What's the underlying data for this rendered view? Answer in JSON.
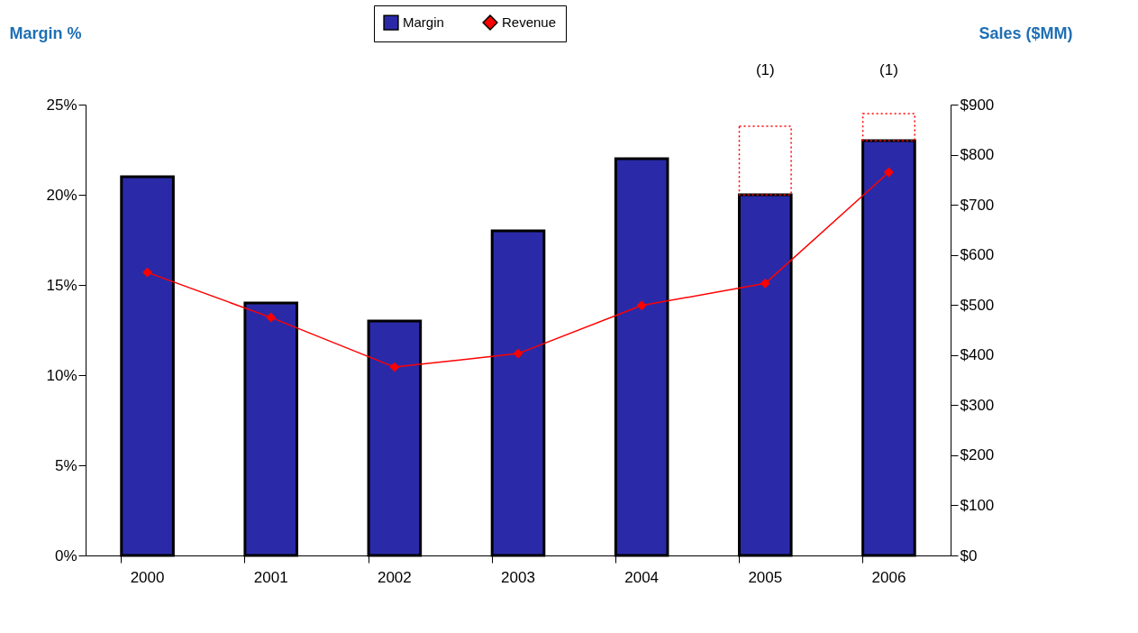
{
  "chart_data": {
    "type": "bar",
    "categories": [
      "2000",
      "2001",
      "2002",
      "2003",
      "2004",
      "2005",
      "2006"
    ],
    "series": [
      {
        "name": "Margin",
        "color": "#2a2aa8",
        "values": [
          21,
          14,
          13,
          18,
          22,
          20,
          23
        ]
      },
      {
        "color": "#ff0000",
        "line_style": "dotted",
        "values": [
          null,
          null,
          null,
          null,
          null,
          3.8,
          1.5
        ]
      },
      {
        "name": "Revenue",
        "type": "line",
        "axis": "y2",
        "color": "#ff0000",
        "marker": "diamond",
        "line_style": "solid",
        "values": [
          565,
          475,
          376,
          403,
          499,
          543,
          765
        ]
      }
    ],
    "stacked": true,
    "ylabel": "Margin %",
    "y2label": "Sales ($MM)",
    "ylim": [
      0,
      25
    ],
    "yticks": [
      {
        "value": 0,
        "label": "0%"
      },
      {
        "value": 5,
        "label": "5%"
      },
      {
        "value": 10,
        "label": "10%"
      },
      {
        "value": 15,
        "label": "15%"
      },
      {
        "value": 20,
        "label": "20%"
      },
      {
        "value": 25,
        "label": "25%"
      }
    ],
    "y2lim": [
      0,
      900
    ],
    "y2ticks": [
      {
        "value": 0,
        "label": "$0"
      },
      {
        "value": 100,
        "label": "$100"
      },
      {
        "value": 200,
        "label": "$200"
      },
      {
        "value": 300,
        "label": "$300"
      },
      {
        "value": 400,
        "label": "$400"
      },
      {
        "value": 500,
        "label": "$500"
      },
      {
        "value": 600,
        "label": "$600"
      },
      {
        "value": 700,
        "label": "$700"
      },
      {
        "value": 800,
        "label": "$800"
      },
      {
        "value": 900,
        "label": "$900"
      }
    ],
    "annotations": [
      "(1)",
      "(1)"
    ],
    "legend": "top",
    "grid": false
  }
}
